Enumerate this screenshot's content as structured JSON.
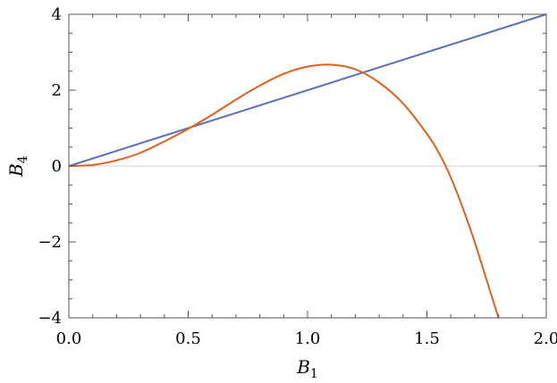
{
  "chart_data": {
    "type": "line",
    "title": "",
    "xlabel": "B",
    "xlabel_sub": "1",
    "ylabel": "B",
    "ylabel_sub": "4",
    "xlim": [
      0,
      2
    ],
    "ylim": [
      -4,
      4
    ],
    "x_ticks": [
      0,
      0.5,
      1,
      1.5,
      2
    ],
    "x_tick_labels": [
      "0.0",
      "0.5",
      "1.0",
      "1.5",
      "2.0"
    ],
    "y_ticks": [
      -4,
      -2,
      0,
      2,
      4
    ],
    "y_tick_labels": [
      "−4",
      "−2",
      "0",
      "2",
      "4"
    ],
    "grid": false,
    "zero_lines": true,
    "series": [
      {
        "color": "#5e6fb8",
        "x": [
          0,
          2
        ],
        "y": [
          0,
          4
        ]
      },
      {
        "color": "#e0611c",
        "x": [
          0,
          0.1,
          0.2,
          0.3,
          0.4,
          0.5,
          0.6,
          0.7,
          0.8,
          0.9,
          1.0,
          1.1,
          1.2,
          1.3,
          1.4,
          1.5,
          1.55,
          1.6,
          1.65,
          1.7,
          1.75,
          1.8
        ],
        "y": [
          0,
          0.03,
          0.15,
          0.35,
          0.65,
          0.98,
          1.35,
          1.75,
          2.12,
          2.43,
          2.62,
          2.67,
          2.55,
          2.2,
          1.65,
          0.85,
          0.35,
          -0.3,
          -1.1,
          -2.0,
          -3.0,
          -4.0
        ]
      }
    ]
  }
}
